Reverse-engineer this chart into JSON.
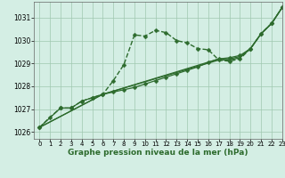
{
  "xlabel": "Graphe pression niveau de la mer (hPa)",
  "background_color": "#d4eee4",
  "grid_color": "#a0c8b0",
  "line_color": "#2d6b2d",
  "xlim": [
    -0.5,
    23
  ],
  "ylim": [
    1025.7,
    1031.7
  ],
  "yticks": [
    1026,
    1027,
    1028,
    1029,
    1030,
    1031
  ],
  "xticks": [
    0,
    1,
    2,
    3,
    4,
    5,
    6,
    7,
    8,
    9,
    10,
    11,
    12,
    13,
    14,
    15,
    16,
    17,
    18,
    19,
    20,
    21,
    22,
    23
  ],
  "series": [
    {
      "x": [
        0,
        1,
        2,
        3,
        4,
        5,
        6,
        7,
        8,
        9,
        10,
        11,
        12,
        13,
        14,
        15,
        16,
        17,
        18,
        19,
        20,
        21,
        22,
        23
      ],
      "y": [
        1026.2,
        1026.65,
        1027.05,
        1027.05,
        1027.35,
        1027.5,
        1027.65,
        1028.25,
        1028.95,
        1030.25,
        1030.2,
        1030.45,
        1030.35,
        1030.0,
        1029.9,
        1029.65,
        1029.6,
        1029.15,
        1029.1,
        1029.2,
        1029.65,
        1030.3,
        1030.75,
        1031.45
      ],
      "linestyle": "--",
      "linewidth": 1.0,
      "has_markers": true
    },
    {
      "x": [
        0,
        6,
        17,
        18,
        19,
        20,
        21,
        22,
        23
      ],
      "y": [
        1026.2,
        1027.65,
        1029.15,
        1029.15,
        1029.25,
        1029.65,
        1030.3,
        1030.75,
        1031.45
      ],
      "linestyle": "-",
      "linewidth": 0.9,
      "has_markers": false
    },
    {
      "x": [
        0,
        6,
        17,
        18,
        19,
        20,
        21,
        22,
        23
      ],
      "y": [
        1026.2,
        1027.65,
        1029.2,
        1029.2,
        1029.3,
        1029.65,
        1030.3,
        1030.75,
        1031.45
      ],
      "linestyle": "-",
      "linewidth": 0.9,
      "has_markers": false
    },
    {
      "x": [
        0,
        2,
        3,
        4,
        5,
        6,
        7,
        8,
        9,
        10,
        11,
        12,
        13,
        14,
        15,
        16,
        17,
        18,
        19,
        20,
        21,
        22,
        23
      ],
      "y": [
        1026.2,
        1027.05,
        1027.05,
        1027.35,
        1027.5,
        1027.65,
        1027.75,
        1027.85,
        1027.95,
        1028.1,
        1028.25,
        1028.4,
        1028.55,
        1028.7,
        1028.85,
        1029.05,
        1029.2,
        1029.25,
        1029.35,
        1029.65,
        1030.3,
        1030.75,
        1031.45
      ],
      "linestyle": "-",
      "linewidth": 0.9,
      "has_markers": true
    }
  ]
}
